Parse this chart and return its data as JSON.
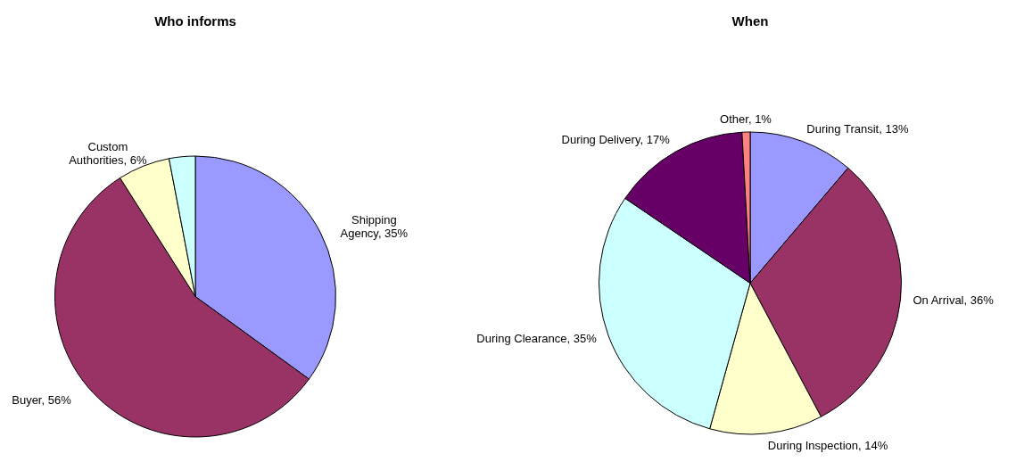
{
  "chart_data": [
    {
      "type": "pie",
      "title": "Who informs",
      "categories": [
        "Shipping Agency",
        "Buyer",
        "Custom Authorities",
        null
      ],
      "values": [
        35,
        56,
        6,
        3
      ],
      "value_labels": [
        "35%",
        "56%",
        "6%",
        null
      ],
      "colors": [
        "#9999ff",
        "#993366",
        "#ffffcc",
        "#ccffff"
      ],
      "legend": false
    },
    {
      "type": "pie",
      "title": "When",
      "categories": [
        "During Transit",
        "On Arrival",
        "During Inspection",
        "During Clearance",
        "During Delivery",
        "Other"
      ],
      "values": [
        13,
        36,
        14,
        35,
        17,
        1
      ],
      "value_labels": [
        "13%",
        "36%",
        "14%",
        "35%",
        "17%",
        "1%"
      ],
      "colors": [
        "#9999ff",
        "#993366",
        "#ffffcc",
        "#ccffff",
        "#660066",
        "#ff8080"
      ],
      "legend": false
    }
  ]
}
